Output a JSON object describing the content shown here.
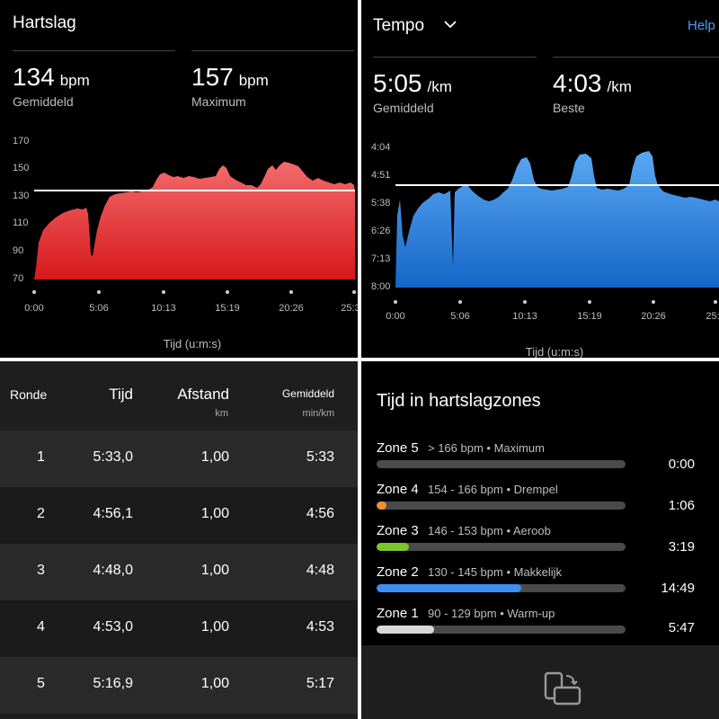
{
  "heart_rate": {
    "title": "Hartslag",
    "avg_value": "134",
    "avg_unit": "bpm",
    "avg_label": "Gemiddeld",
    "max_value": "157",
    "max_unit": "bpm",
    "max_label": "Maximum",
    "y_ticks": [
      "170",
      "150",
      "130",
      "110",
      "90",
      "70"
    ],
    "x_ticks": [
      "0:00",
      "5:06",
      "10:13",
      "15:19",
      "20:26",
      "25:3"
    ],
    "x_axis_title": "Tijd (u:m:s)",
    "fill_color": "#e8292b"
  },
  "pace": {
    "title": "Tempo",
    "help_label": "Help",
    "avg_value": "5:05",
    "avg_unit": "/km",
    "avg_label": "Gemiddeld",
    "best_value": "4:03",
    "best_unit": "/km",
    "best_label": "Beste",
    "y_ticks": [
      "4:04",
      "4:51",
      "5:38",
      "6:26",
      "7:13",
      "8:00"
    ],
    "x_ticks": [
      "0:00",
      "5:06",
      "10:13",
      "15:19",
      "20:26",
      "25:"
    ],
    "x_axis_title": "Tijd (u:m:s)",
    "fill_color": "#1f7ae0"
  },
  "laps": {
    "headers": {
      "lap": "Ronde",
      "time": "Tijd",
      "distance": "Afstand",
      "distance_unit": "km",
      "avg": "Gemiddeld",
      "avg_unit": "min/km"
    },
    "rows": [
      {
        "lap": "1",
        "time": "5:33,0",
        "distance": "1,00",
        "avg": "5:33"
      },
      {
        "lap": "2",
        "time": "4:56,1",
        "distance": "1,00",
        "avg": "4:56"
      },
      {
        "lap": "3",
        "time": "4:48,0",
        "distance": "1,00",
        "avg": "4:48"
      },
      {
        "lap": "4",
        "time": "4:53,0",
        "distance": "1,00",
        "avg": "4:53"
      },
      {
        "lap": "5",
        "time": "5:16,9",
        "distance": "1,00",
        "avg": "5:17"
      }
    ]
  },
  "zones": {
    "title": "Tijd in hartslagzones",
    "items": [
      {
        "name": "Zone 5",
        "desc": "> 166 bpm • Maximum",
        "time": "0:00",
        "fraction": 0.0,
        "color": "#888888"
      },
      {
        "name": "Zone 4",
        "desc": "154 - 166 bpm • Drempel",
        "time": "1:06",
        "fraction": 0.04,
        "color": "#f0902a"
      },
      {
        "name": "Zone 3",
        "desc": "146 - 153 bpm • Aeroob",
        "time": "3:19",
        "fraction": 0.13,
        "color": "#7cc42c"
      },
      {
        "name": "Zone 2",
        "desc": "130 - 145 bpm • Makkelijk",
        "time": "14:49",
        "fraction": 0.58,
        "color": "#3d8ef0"
      },
      {
        "name": "Zone 1",
        "desc": "90 - 129 bpm • Warm-up",
        "time": "5:47",
        "fraction": 0.23,
        "color": "#d8d8d8"
      }
    ],
    "rotate_icon": "rotate-screen-icon"
  }
}
